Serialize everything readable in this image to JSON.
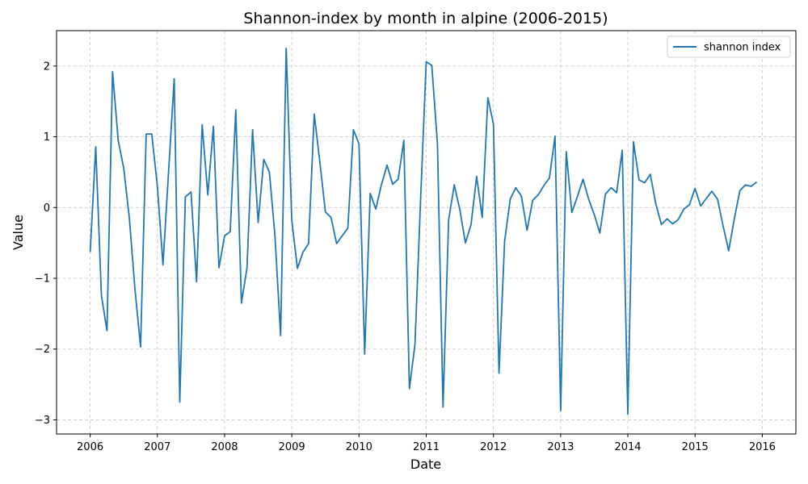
{
  "chart_data": {
    "type": "line",
    "title": "Shannon-index by month in alpine (2006-2015)",
    "xlabel": "Date",
    "ylabel": "Value",
    "x_ticks": [
      "2006",
      "2007",
      "2008",
      "2009",
      "2010",
      "2011",
      "2012",
      "2013",
      "2014",
      "2015",
      "2016"
    ],
    "y_ticks": [
      "−3",
      "−2",
      "−1",
      "0",
      "1",
      "2"
    ],
    "x_range": [
      "2005-07",
      "2016-07"
    ],
    "ylim": [
      -3.2,
      2.5
    ],
    "grid": true,
    "legend_position": "top-right",
    "series": [
      {
        "name": "shannon index",
        "color": "#1f77b4",
        "x": [
          "2006-01",
          "2006-02",
          "2006-03",
          "2006-04",
          "2006-05",
          "2006-06",
          "2006-07",
          "2006-08",
          "2006-09",
          "2006-10",
          "2006-11",
          "2006-12",
          "2007-01",
          "2007-02",
          "2007-03",
          "2007-04",
          "2007-05",
          "2007-06",
          "2007-07",
          "2007-08",
          "2007-09",
          "2007-10",
          "2007-11",
          "2007-12",
          "2008-01",
          "2008-02",
          "2008-03",
          "2008-04",
          "2008-05",
          "2008-06",
          "2008-07",
          "2008-08",
          "2008-09",
          "2008-10",
          "2008-11",
          "2008-12",
          "2009-01",
          "2009-02",
          "2009-03",
          "2009-04",
          "2009-05",
          "2009-06",
          "2009-07",
          "2009-08",
          "2009-09",
          "2009-10",
          "2009-11",
          "2009-12",
          "2010-01",
          "2010-02",
          "2010-03",
          "2010-04",
          "2010-05",
          "2010-06",
          "2010-07",
          "2010-08",
          "2010-09",
          "2010-10",
          "2010-11",
          "2010-12",
          "2011-01",
          "2011-02",
          "2011-03",
          "2011-04",
          "2011-05",
          "2011-06",
          "2011-07",
          "2011-08",
          "2011-09",
          "2011-10",
          "2011-11",
          "2011-12",
          "2012-01",
          "2012-02",
          "2012-03",
          "2012-04",
          "2012-05",
          "2012-06",
          "2012-07",
          "2012-08",
          "2012-09",
          "2012-10",
          "2012-11",
          "2012-12",
          "2013-01",
          "2013-02",
          "2013-03",
          "2013-04",
          "2013-05",
          "2013-06",
          "2013-07",
          "2013-08",
          "2013-09",
          "2013-10",
          "2013-11",
          "2013-12",
          "2014-01",
          "2014-02",
          "2014-03",
          "2014-04",
          "2014-05",
          "2014-06",
          "2014-07",
          "2014-08",
          "2014-09",
          "2014-10",
          "2014-11",
          "2014-12",
          "2015-01",
          "2015-02",
          "2015-03",
          "2015-04",
          "2015-05",
          "2015-06",
          "2015-07",
          "2015-08",
          "2015-09",
          "2015-10",
          "2015-11",
          "2015-12"
        ],
        "y": [
          -0.63,
          0.86,
          -1.24,
          -1.74,
          1.92,
          0.95,
          0.55,
          -0.15,
          -1.15,
          -1.97,
          1.04,
          1.04,
          0.3,
          -0.81,
          0.5,
          1.82,
          -2.75,
          0.15,
          0.22,
          -1.05,
          1.17,
          0.18,
          1.15,
          -0.85,
          -0.4,
          -0.34,
          1.38,
          -1.35,
          -0.85,
          1.1,
          -0.21,
          0.68,
          0.5,
          -0.4,
          -1.81,
          2.25,
          -0.18,
          -0.86,
          -0.63,
          -0.51,
          1.32,
          0.65,
          -0.06,
          -0.14,
          -0.51,
          -0.4,
          -0.29,
          1.1,
          0.9,
          -2.07,
          0.2,
          -0.02,
          0.32,
          0.6,
          0.33,
          0.4,
          0.95,
          -2.56,
          -1.93,
          0.13,
          2.06,
          2.01,
          0.9,
          -2.82,
          -0.18,
          0.32,
          -0.03,
          -0.5,
          -0.24,
          0.44,
          -0.14,
          1.55,
          1.18,
          -2.34,
          -0.48,
          0.12,
          0.28,
          0.16,
          -0.32,
          0.1,
          0.18,
          0.31,
          0.42,
          1.01,
          -2.87,
          0.79,
          -0.07,
          0.16,
          0.4,
          0.12,
          -0.1,
          -0.36,
          0.19,
          0.28,
          0.21,
          0.81,
          -2.92,
          0.93,
          0.39,
          0.35,
          0.47,
          0.05,
          -0.24,
          -0.16,
          -0.23,
          -0.17,
          -0.02,
          0.04,
          0.27,
          0.02,
          0.13,
          0.23,
          0.12,
          -0.26,
          -0.61,
          -0.16,
          0.24,
          0.32,
          0.3,
          0.36
        ]
      }
    ]
  }
}
